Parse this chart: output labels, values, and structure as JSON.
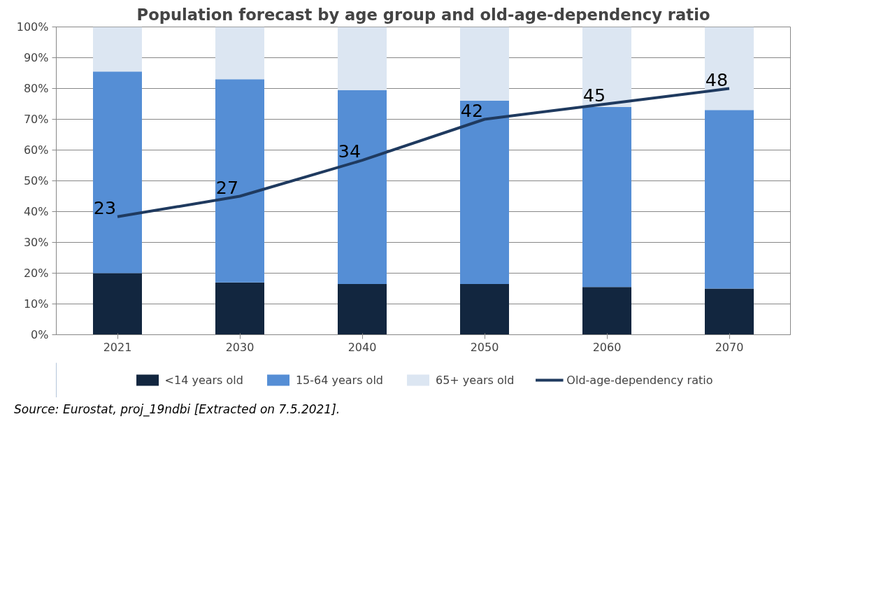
{
  "chart_data": {
    "type": "bar",
    "title": "Population forecast by age group and old-age-dependency ratio",
    "categories": [
      "2021",
      "2030",
      "2040",
      "2050",
      "2060",
      "2070"
    ],
    "stacked": true,
    "series": [
      {
        "name": "<14 years old",
        "color": "#12263f",
        "values": [
          20,
          17,
          16.5,
          16.5,
          15.5,
          15
        ]
      },
      {
        "name": "15-64 years old",
        "color": "#558ed5",
        "values": [
          65.5,
          66,
          63,
          59.5,
          58.5,
          58
        ]
      },
      {
        "name": "65+ years old",
        "color": "#dce6f2",
        "values": [
          14.5,
          17,
          20.5,
          24,
          26,
          27
        ]
      },
      {
        "name": "Old-age-dependency ratio",
        "type": "line",
        "axis": "y2",
        "color": "#1f3a5f",
        "values": [
          23,
          27,
          34,
          42,
          45,
          48
        ],
        "data_labels": true
      }
    ],
    "ylim": [
      0,
      100
    ],
    "yticks": [
      {
        "value": 0,
        "label": "0%"
      },
      {
        "value": 10,
        "label": "10%"
      },
      {
        "value": 20,
        "label": "20%"
      },
      {
        "value": 30,
        "label": "30%"
      },
      {
        "value": 40,
        "label": "40%"
      },
      {
        "value": 50,
        "label": "50%"
      },
      {
        "value": 60,
        "label": "60%"
      },
      {
        "value": 70,
        "label": "70%"
      },
      {
        "value": 80,
        "label": "80%"
      },
      {
        "value": 90,
        "label": "90%"
      },
      {
        "value": 100,
        "label": "100%"
      }
    ],
    "y2lim": [
      0,
      60
    ],
    "tick_labels": "xy",
    "grid": "y",
    "legend": "bottom",
    "marker": "none",
    "line_style": "solid",
    "annotations": [
      "Source: Eurostat, proj_19ndbi [Extracted on 7.5.2021]."
    ]
  }
}
